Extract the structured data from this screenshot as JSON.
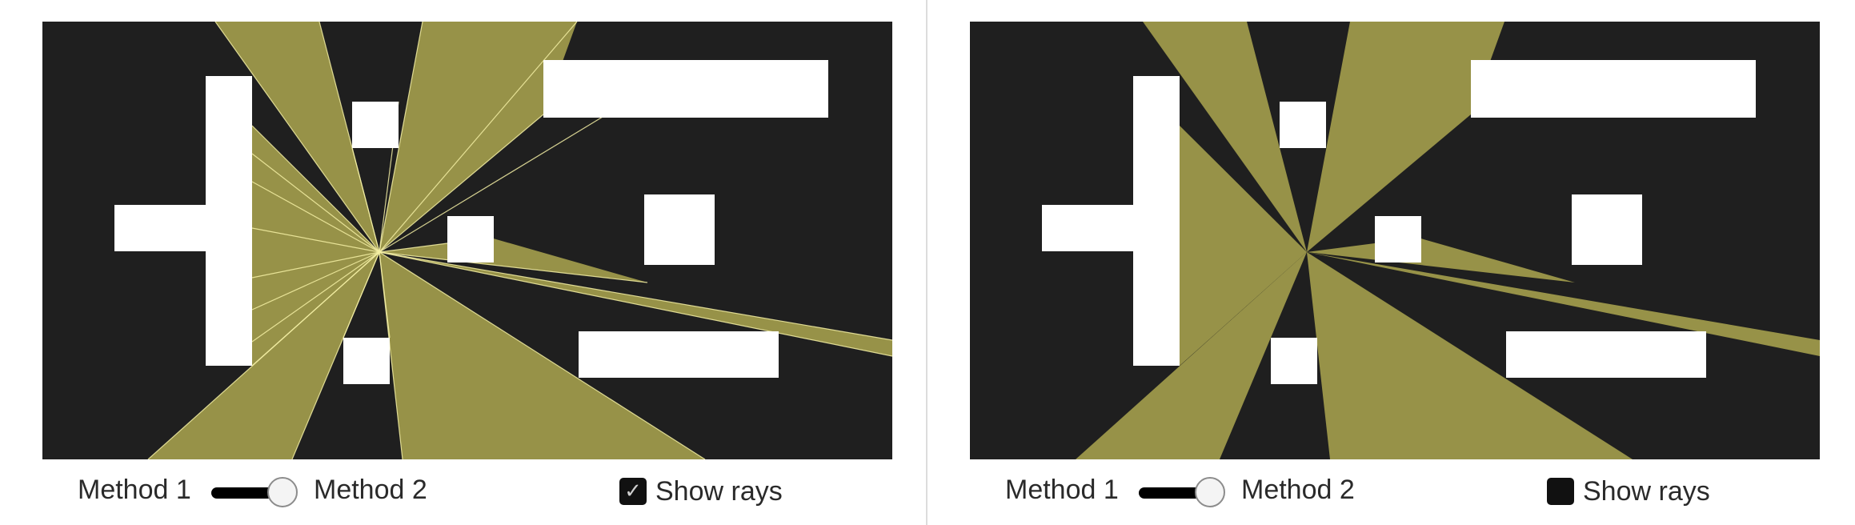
{
  "colors": {
    "background": "#1f1f1f",
    "visibility": "#979248",
    "ray": "#f4f0a4",
    "obstacle": "#ffffff"
  },
  "panels": [
    {
      "method1_label": "Method 1",
      "method2_label": "Method 2",
      "method_slider_value": "Method 2",
      "show_rays_label": "Show rays",
      "show_rays_checked": true,
      "checkbox_icon": "checkmark-icon"
    },
    {
      "method1_label": "Method 1",
      "method2_label": "Method 2",
      "method_slider_value": "Method 2",
      "show_rays_label": "Show rays",
      "show_rays_checked": false,
      "checkbox_icon": ""
    }
  ]
}
